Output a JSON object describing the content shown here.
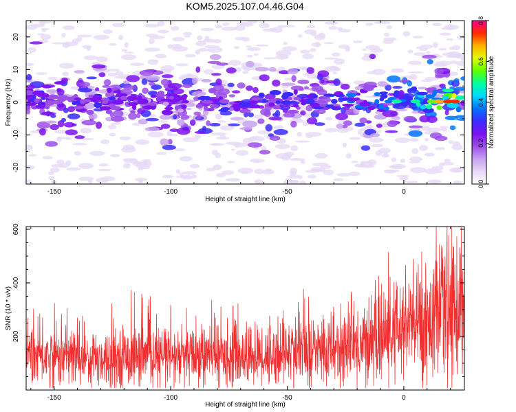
{
  "title": "KOM5.2025.107.04.46.G04",
  "chart_data": [
    {
      "type": "heatmap",
      "xlabel": "Height of straight line (km)",
      "ylabel": "Frequency (Hz)",
      "xlim": [
        -162,
        26
      ],
      "ylim": [
        -25,
        25
      ],
      "xticks": [
        -150,
        -100,
        -50,
        0
      ],
      "xtick_labels": [
        "-150",
        "-100",
        "-50",
        "0"
      ],
      "yticks": [
        -20,
        -10,
        0,
        10,
        20
      ],
      "ytick_labels": [
        "-20",
        "-10",
        "0",
        "10",
        "20"
      ],
      "colorbar": {
        "label": "Normalized spectral amplitude",
        "range": [
          0.0,
          0.8
        ],
        "ticks": [
          0.0,
          0.2,
          0.4,
          0.6,
          0.8
        ],
        "tick_labels": [
          "0.0",
          "0.2",
          "0.4",
          "0.6",
          "0.8"
        ],
        "colors": [
          "#ffffff",
          "#e6d8f6",
          "#c7a2ef",
          "#9b4ee8",
          "#7b12f0",
          "#3a2cff",
          "#0073ff",
          "#00d8ff",
          "#00ffa0",
          "#5dff00",
          "#e0ff00",
          "#ffb000",
          "#ff2a00",
          "#ff0090"
        ]
      },
      "ridge": {
        "description_free": true,
        "frequency_center_hz": 0.5,
        "amplitude_trend": [
          {
            "x": -160,
            "amp": 0.35
          },
          {
            "x": -100,
            "amp": 0.3
          },
          {
            "x": -50,
            "amp": 0.35
          },
          {
            "x": -10,
            "amp": 0.45
          },
          {
            "x": 10,
            "amp": 0.6
          },
          {
            "x": 22,
            "amp": 0.78
          }
        ]
      },
      "grid": false
    },
    {
      "type": "line",
      "xlabel": "Height of straight line (km)",
      "ylabel": "SNR (10 * v/v)",
      "xlim": [
        -162,
        26
      ],
      "ylim": [
        0,
        610
      ],
      "xticks": [
        -150,
        -100,
        -50,
        0
      ],
      "xtick_labels": [
        "-150",
        "-100",
        "-50",
        "0"
      ],
      "yticks": [
        200,
        400,
        600
      ],
      "ytick_labels": [
        "200",
        "400",
        "600"
      ],
      "color": "#f03030",
      "series": [
        {
          "x": [
            -162,
            -150,
            -140,
            -130,
            -120,
            -110,
            -100,
            -90,
            -80,
            -70,
            -60,
            -50,
            -40,
            -30,
            -20,
            -10,
            0,
            10,
            20,
            26
          ],
          "mean": [
            130,
            125,
            125,
            120,
            125,
            125,
            120,
            125,
            130,
            130,
            125,
            140,
            145,
            150,
            165,
            195,
            230,
            260,
            300,
            320
          ],
          "peak": [
            300,
            330,
            340,
            330,
            340,
            460,
            330,
            350,
            330,
            330,
            350,
            380,
            390,
            400,
            420,
            410,
            450,
            510,
            610,
            590
          ]
        }
      ],
      "grid": false
    }
  ]
}
